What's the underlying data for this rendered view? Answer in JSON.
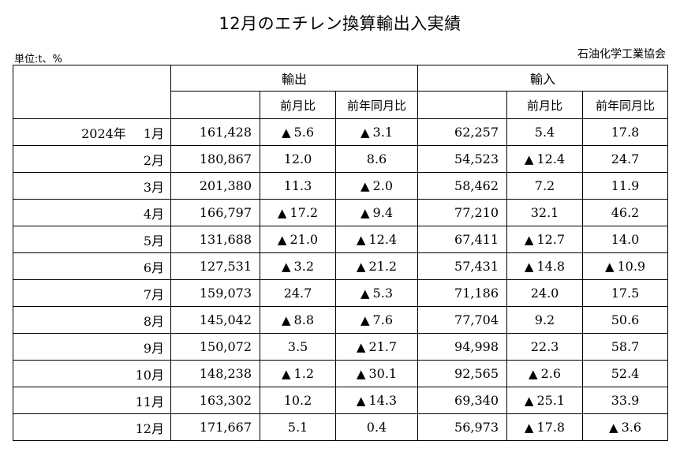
{
  "title": "12月のエチレン換算輸出入実績",
  "unit": "単位:t、%",
  "source": "石油化学工業協会",
  "headers": {
    "export": "輸出",
    "import": "輸入",
    "mom": "前月比",
    "yoy": "前年同月比"
  },
  "decline_marker": "▲",
  "rows": [
    {
      "year": "2024年",
      "month": "1月",
      "export": "161,428",
      "export_mom": "5.6",
      "export_mom_neg": true,
      "export_yoy": "3.1",
      "export_yoy_neg": true,
      "import": "62,257",
      "import_mom": "5.4",
      "import_mom_neg": false,
      "import_yoy": "17.8",
      "import_yoy_neg": false
    },
    {
      "year": "",
      "month": "2月",
      "export": "180,867",
      "export_mom": "12.0",
      "export_mom_neg": false,
      "export_yoy": "8.6",
      "export_yoy_neg": false,
      "import": "54,523",
      "import_mom": "12.4",
      "import_mom_neg": true,
      "import_yoy": "24.7",
      "import_yoy_neg": false
    },
    {
      "year": "",
      "month": "3月",
      "export": "201,380",
      "export_mom": "11.3",
      "export_mom_neg": false,
      "export_yoy": "2.0",
      "export_yoy_neg": true,
      "import": "58,462",
      "import_mom": "7.2",
      "import_mom_neg": false,
      "import_yoy": "11.9",
      "import_yoy_neg": false
    },
    {
      "year": "",
      "month": "4月",
      "export": "166,797",
      "export_mom": "17.2",
      "export_mom_neg": true,
      "export_yoy": "9.4",
      "export_yoy_neg": true,
      "import": "77,210",
      "import_mom": "32.1",
      "import_mom_neg": false,
      "import_yoy": "46.2",
      "import_yoy_neg": false
    },
    {
      "year": "",
      "month": "5月",
      "export": "131,688",
      "export_mom": "21.0",
      "export_mom_neg": true,
      "export_yoy": "12.4",
      "export_yoy_neg": true,
      "import": "67,411",
      "import_mom": "12.7",
      "import_mom_neg": true,
      "import_yoy": "14.0",
      "import_yoy_neg": false
    },
    {
      "year": "",
      "month": "6月",
      "export": "127,531",
      "export_mom": "3.2",
      "export_mom_neg": true,
      "export_yoy": "21.2",
      "export_yoy_neg": true,
      "import": "57,431",
      "import_mom": "14.8",
      "import_mom_neg": true,
      "import_yoy": "10.9",
      "import_yoy_neg": true
    },
    {
      "year": "",
      "month": "7月",
      "export": "159,073",
      "export_mom": "24.7",
      "export_mom_neg": false,
      "export_yoy": "5.3",
      "export_yoy_neg": true,
      "import": "71,186",
      "import_mom": "24.0",
      "import_mom_neg": false,
      "import_yoy": "17.5",
      "import_yoy_neg": false
    },
    {
      "year": "",
      "month": "8月",
      "export": "145,042",
      "export_mom": "8.8",
      "export_mom_neg": true,
      "export_yoy": "7.6",
      "export_yoy_neg": true,
      "import": "77,704",
      "import_mom": "9.2",
      "import_mom_neg": false,
      "import_yoy": "50.6",
      "import_yoy_neg": false
    },
    {
      "year": "",
      "month": "9月",
      "export": "150,072",
      "export_mom": "3.5",
      "export_mom_neg": false,
      "export_yoy": "21.7",
      "export_yoy_neg": true,
      "import": "94,998",
      "import_mom": "22.3",
      "import_mom_neg": false,
      "import_yoy": "58.7",
      "import_yoy_neg": false
    },
    {
      "year": "",
      "month": "10月",
      "export": "148,238",
      "export_mom": "1.2",
      "export_mom_neg": true,
      "export_yoy": "30.1",
      "export_yoy_neg": true,
      "import": "92,565",
      "import_mom": "2.6",
      "import_mom_neg": true,
      "import_yoy": "52.4",
      "import_yoy_neg": false
    },
    {
      "year": "",
      "month": "11月",
      "export": "163,302",
      "export_mom": "10.2",
      "export_mom_neg": false,
      "export_yoy": "14.3",
      "export_yoy_neg": true,
      "import": "69,340",
      "import_mom": "25.1",
      "import_mom_neg": true,
      "import_yoy": "33.9",
      "import_yoy_neg": false
    },
    {
      "year": "",
      "month": "12月",
      "export": "171,667",
      "export_mom": "5.1",
      "export_mom_neg": false,
      "export_yoy": "0.4",
      "export_yoy_neg": false,
      "import": "56,973",
      "import_mom": "17.8",
      "import_mom_neg": true,
      "import_yoy": "3.6",
      "import_yoy_neg": true
    }
  ]
}
